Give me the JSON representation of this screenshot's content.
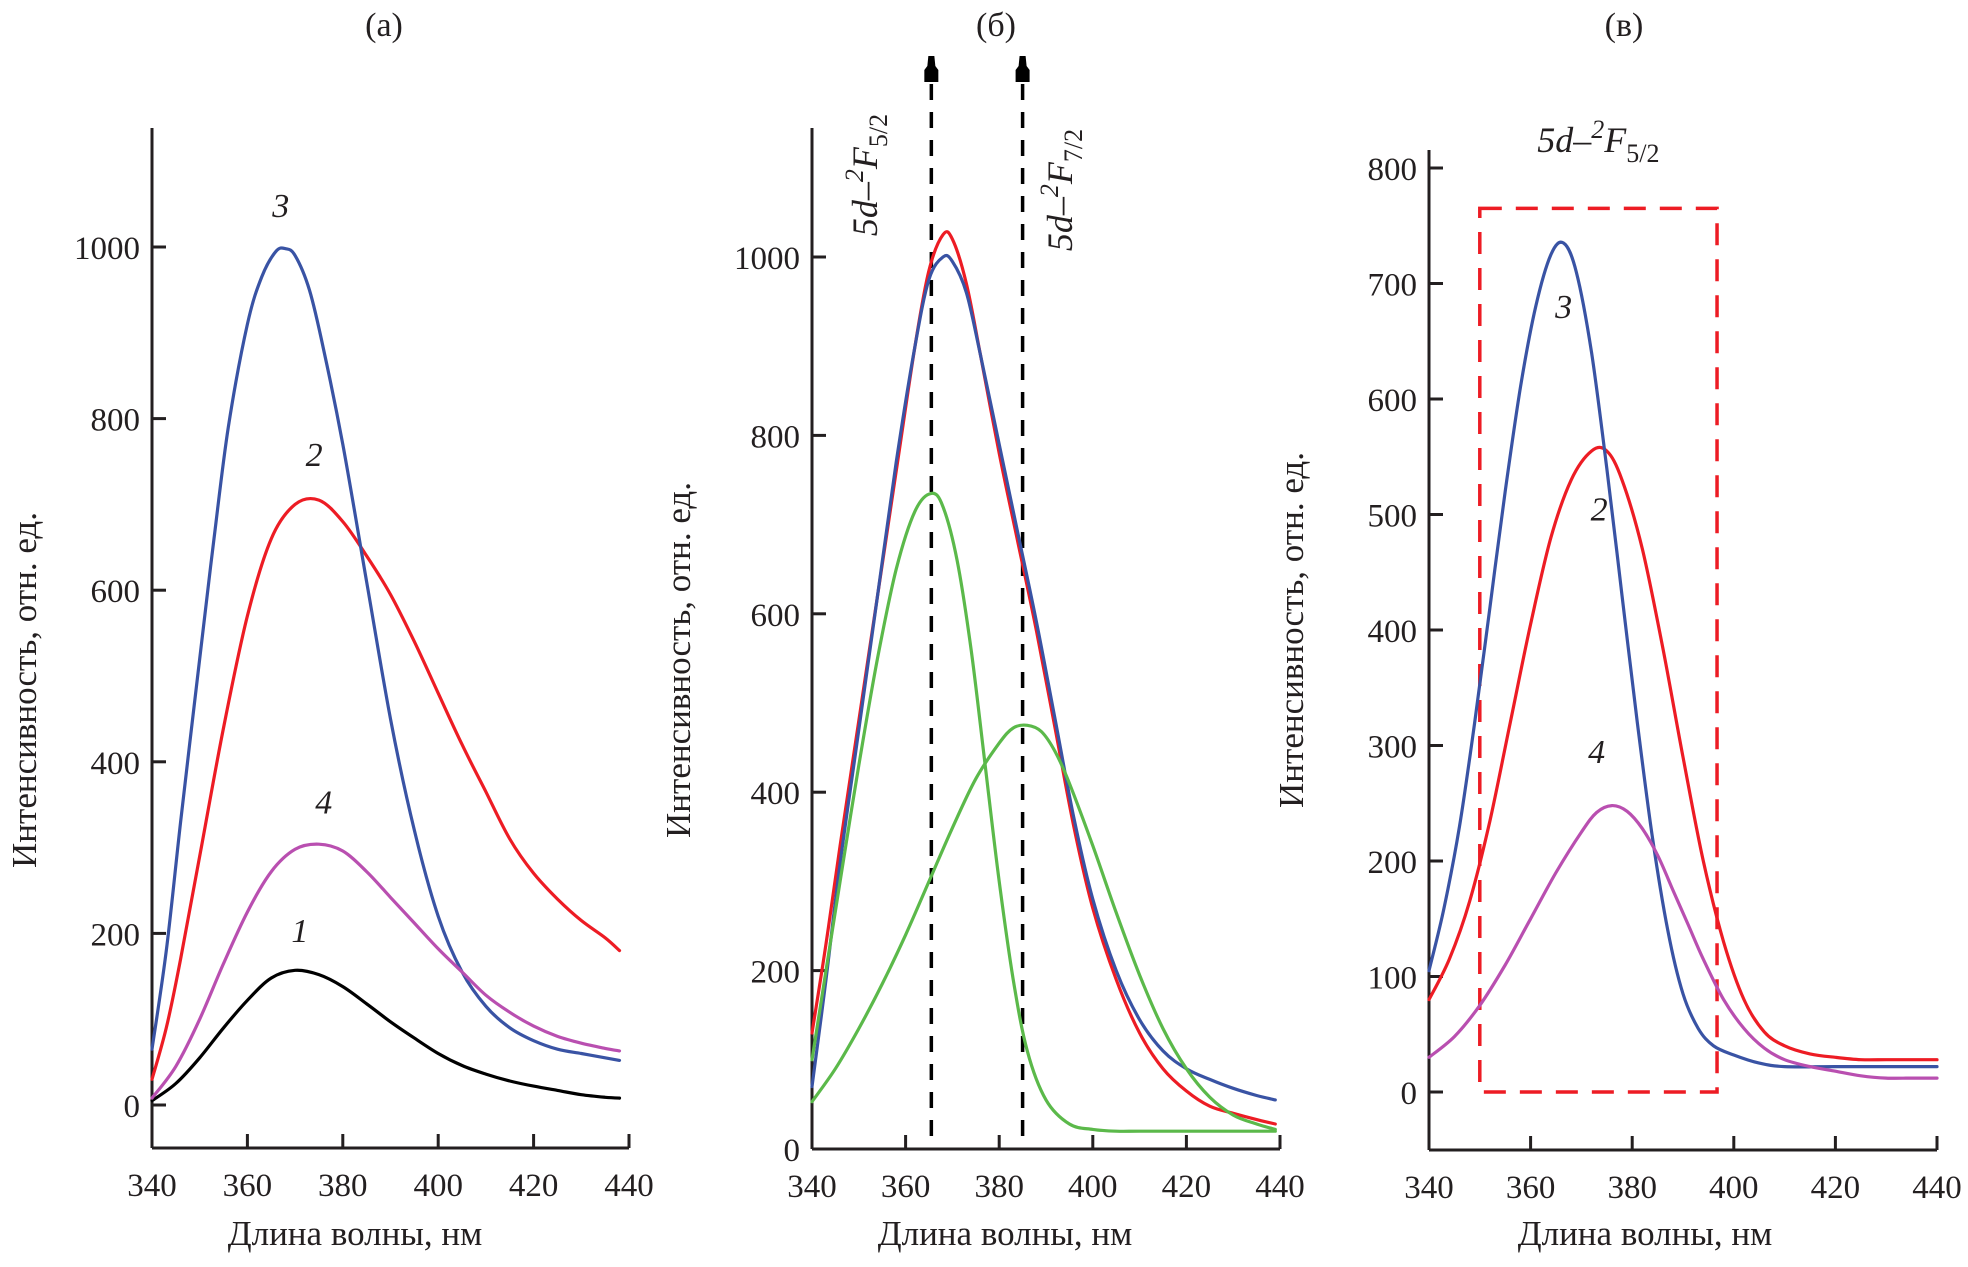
{
  "chart_data": [
    {
      "id": "a",
      "type": "line",
      "panel_label": "(а)",
      "xlabel": "Длина волны, нм",
      "ylabel": "Интенсивность, отн. ед.",
      "xlim": [
        340,
        440
      ],
      "ylim": [
        -60,
        1130
      ],
      "xticks": [
        340,
        360,
        380,
        400,
        420,
        440
      ],
      "yticks": [
        0,
        200,
        400,
        600,
        800,
        1000
      ],
      "grid": false,
      "series": [
        {
          "name": "1",
          "color": "#000000",
          "label_at": [
            371,
            190
          ],
          "x": [
            340,
            345,
            350,
            355,
            360,
            365,
            370,
            375,
            380,
            385,
            390,
            395,
            400,
            405,
            410,
            415,
            420,
            425,
            430,
            435,
            438
          ],
          "y": [
            5,
            25,
            55,
            90,
            122,
            148,
            157,
            152,
            138,
            118,
            97,
            78,
            60,
            46,
            36,
            28,
            22,
            17,
            12,
            9,
            8
          ]
        },
        {
          "name": "2",
          "color": "#ed1c24",
          "label_at": [
            374,
            745
          ],
          "x": [
            340,
            343,
            346,
            350,
            355,
            360,
            365,
            370,
            375,
            380,
            385,
            390,
            395,
            400,
            405,
            410,
            415,
            420,
            425,
            430,
            435,
            438
          ],
          "y": [
            30,
            90,
            170,
            290,
            440,
            570,
            660,
            700,
            705,
            680,
            640,
            595,
            540,
            480,
            420,
            365,
            310,
            270,
            240,
            215,
            195,
            180
          ]
        },
        {
          "name": "3",
          "color": "#3953a4",
          "label_at": [
            367,
            1035
          ],
          "x": [
            340,
            343,
            346,
            350,
            353,
            356,
            360,
            363,
            366,
            368,
            370,
            373,
            376,
            380,
            385,
            390,
            395,
            400,
            405,
            410,
            415,
            420,
            425,
            430,
            435,
            438
          ],
          "y": [
            65,
            180,
            330,
            520,
            660,
            790,
            910,
            965,
            995,
            998,
            990,
            950,
            880,
            770,
            610,
            450,
            320,
            220,
            155,
            115,
            90,
            75,
            65,
            60,
            55,
            52
          ]
        },
        {
          "name": "4",
          "color": "#b94fb0",
          "label_at": [
            376,
            340
          ],
          "x": [
            340,
            345,
            350,
            355,
            360,
            365,
            370,
            375,
            380,
            385,
            390,
            395,
            400,
            405,
            410,
            415,
            420,
            425,
            430,
            435,
            438
          ],
          "y": [
            8,
            45,
            100,
            165,
            225,
            272,
            298,
            304,
            296,
            272,
            242,
            212,
            182,
            155,
            128,
            108,
            92,
            80,
            72,
            66,
            63
          ]
        }
      ]
    },
    {
      "id": "b",
      "type": "line",
      "panel_label": "(б)",
      "xlabel": "Длина волны, нм",
      "ylabel": "Интенсивность, отн. ед.",
      "xlim": [
        340,
        440
      ],
      "ylim": [
        0,
        1150
      ],
      "xticks": [
        340,
        360,
        380,
        400,
        420,
        440
      ],
      "yticks": [
        0,
        200,
        400,
        600,
        800,
        1000
      ],
      "grid": false,
      "annotations": [
        {
          "text_main": "5d–",
          "sup": "2",
          "letter": "F",
          "sub": "5/2",
          "x": 365.5,
          "rotated": true
        },
        {
          "text_main": "5d–",
          "sup": "2",
          "letter": "F",
          "sub": "7/2",
          "x": 385,
          "rotated": true
        }
      ],
      "vlines": [
        365.5,
        385
      ],
      "series": [
        {
          "name": "total-red",
          "color": "#ed1c24",
          "x": [
            340,
            343,
            346,
            350,
            354,
            358,
            362,
            365,
            368,
            370,
            373,
            376,
            380,
            384,
            388,
            392,
            396,
            400,
            405,
            410,
            415,
            420,
            425,
            430,
            435,
            439
          ],
          "y": [
            130,
            230,
            340,
            480,
            620,
            760,
            900,
            985,
            1025,
            1020,
            970,
            890,
            780,
            680,
            580,
            470,
            360,
            270,
            190,
            130,
            90,
            65,
            48,
            40,
            33,
            28
          ]
        },
        {
          "name": "total-blue",
          "color": "#3953a4",
          "x": [
            340,
            343,
            346,
            350,
            354,
            358,
            362,
            365,
            368,
            370,
            373,
            376,
            380,
            384,
            388,
            392,
            396,
            400,
            405,
            410,
            415,
            420,
            425,
            430,
            435,
            439
          ],
          "y": [
            70,
            190,
            320,
            470,
            620,
            770,
            900,
            975,
            1000,
            995,
            960,
            890,
            790,
            690,
            590,
            480,
            370,
            280,
            200,
            145,
            110,
            90,
            78,
            68,
            60,
            55
          ]
        },
        {
          "name": "component-5/2",
          "color": "#5bb94a",
          "x": [
            340,
            343,
            346,
            350,
            354,
            358,
            362,
            365.5,
            368,
            371,
            374,
            377,
            380,
            383,
            386,
            390,
            395,
            400,
            405,
            410,
            420,
            430,
            439
          ],
          "y": [
            100,
            200,
            300,
            430,
            550,
            650,
            715,
            735,
            720,
            660,
            560,
            430,
            300,
            190,
            110,
            55,
            28,
            22,
            20,
            20,
            20,
            20,
            20
          ]
        },
        {
          "name": "component-7/2",
          "color": "#5bb94a",
          "x": [
            340,
            345,
            350,
            355,
            360,
            365,
            370,
            375,
            380,
            383,
            386,
            389,
            392,
            395,
            400,
            405,
            410,
            415,
            420,
            425,
            430,
            435,
            439
          ],
          "y": [
            53,
            90,
            135,
            185,
            240,
            300,
            360,
            415,
            455,
            472,
            475,
            468,
            445,
            410,
            340,
            265,
            195,
            135,
            90,
            58,
            38,
            28,
            22
          ]
        }
      ]
    },
    {
      "id": "c",
      "type": "line",
      "panel_label": "(в)",
      "xlabel": "Длина волны, нм",
      "ylabel": "Интенсивность, отн. ед.",
      "xlim": [
        340,
        440
      ],
      "ylim": [
        -50,
        800
      ],
      "xticks": [
        340,
        360,
        380,
        400,
        420,
        440
      ],
      "yticks": [
        0,
        100,
        200,
        300,
        400,
        500,
        600,
        700,
        800
      ],
      "grid": false,
      "box": {
        "x": [
          350,
          396.7
        ],
        "y": [
          0,
          765
        ],
        "label_main": "5d–",
        "label_sup": "2",
        "label_letter": "F",
        "label_sub": "5/2"
      },
      "series": [
        {
          "name": "2",
          "color": "#ed1c24",
          "label_at": [
            373.5,
            495
          ],
          "x": [
            340,
            344,
            348,
            352,
            356,
            360,
            364,
            368,
            372,
            375,
            378,
            382,
            386,
            390,
            394,
            398,
            402,
            406,
            410,
            415,
            420,
            425,
            430,
            435,
            440
          ],
          "y": [
            80,
            115,
            165,
            235,
            320,
            405,
            480,
            530,
            555,
            555,
            530,
            470,
            385,
            290,
            200,
            130,
            80,
            52,
            40,
            33,
            30,
            28,
            28,
            28,
            28
          ]
        },
        {
          "name": "3",
          "color": "#3953a4",
          "label_at": [
            366.5,
            670
          ],
          "x": [
            340,
            343,
            346,
            349,
            352,
            355,
            358,
            361,
            364,
            366.5,
            369,
            372,
            375,
            378,
            381,
            384,
            387,
            390,
            393,
            396,
            400,
            405,
            410,
            420,
            430,
            440
          ],
          "y": [
            105,
            160,
            230,
            320,
            420,
            520,
            610,
            680,
            725,
            735,
            710,
            640,
            540,
            430,
            320,
            220,
            140,
            85,
            55,
            40,
            32,
            25,
            22,
            22,
            22,
            22
          ]
        },
        {
          "name": "4",
          "color": "#b94fb0",
          "label_at": [
            373,
            285
          ],
          "x": [
            340,
            345,
            350,
            355,
            360,
            365,
            370,
            373,
            376,
            379,
            382,
            385,
            388,
            391,
            394,
            398,
            402,
            406,
            410,
            415,
            420,
            425,
            430,
            435,
            440
          ],
          "y": [
            30,
            48,
            75,
            110,
            150,
            190,
            225,
            242,
            248,
            243,
            228,
            205,
            175,
            145,
            115,
            80,
            55,
            38,
            28,
            22,
            18,
            14,
            12,
            12,
            12
          ]
        }
      ]
    }
  ]
}
